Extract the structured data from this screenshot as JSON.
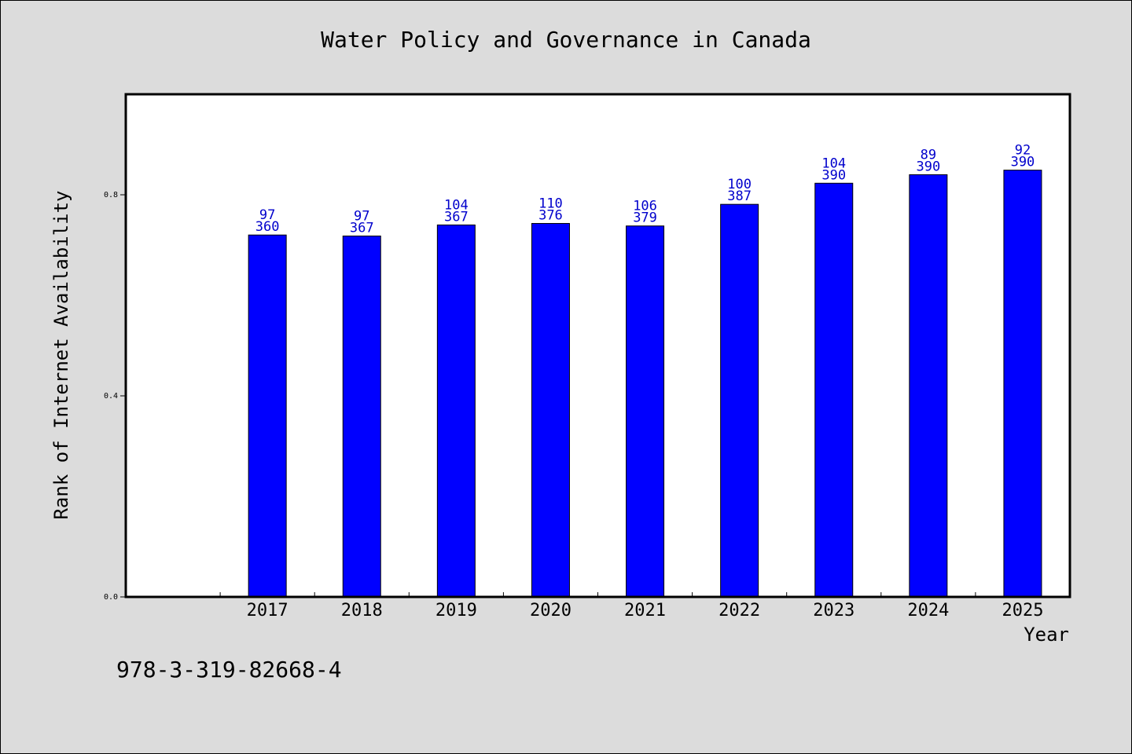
{
  "chart_data": {
    "type": "bar",
    "title": "Water Policy and Governance in Canada",
    "xlabel": "Year",
    "ylabel": "Rank of Internet Availability",
    "categories": [
      "2017",
      "2018",
      "2019",
      "2020",
      "2021",
      "2022",
      "2023",
      "2024",
      "2025"
    ],
    "series": [
      {
        "values": [
          0.72,
          0.718,
          0.74,
          0.743,
          0.738,
          0.781,
          0.823,
          0.84,
          0.849
        ]
      }
    ],
    "bar_labels_top": [
      "97",
      "97",
      "104",
      "110",
      "106",
      "100",
      "104",
      "89",
      "92"
    ],
    "bar_labels_bottom": [
      "360",
      "367",
      "367",
      "376",
      "379",
      "387",
      "390",
      "390",
      "390"
    ],
    "ylim": [
      0,
      1.0
    ],
    "yticks": [
      "0.0",
      "0.4",
      "0.8"
    ],
    "ytick_values": [
      0,
      0.4,
      0.8
    ],
    "grid": false,
    "colors": {
      "bar": "#0000ff",
      "bar_label": "#0000cc",
      "background": "#dcdcdc",
      "plot_background": "#ffffff"
    }
  },
  "footer_code": "978-3-319-82668-4"
}
